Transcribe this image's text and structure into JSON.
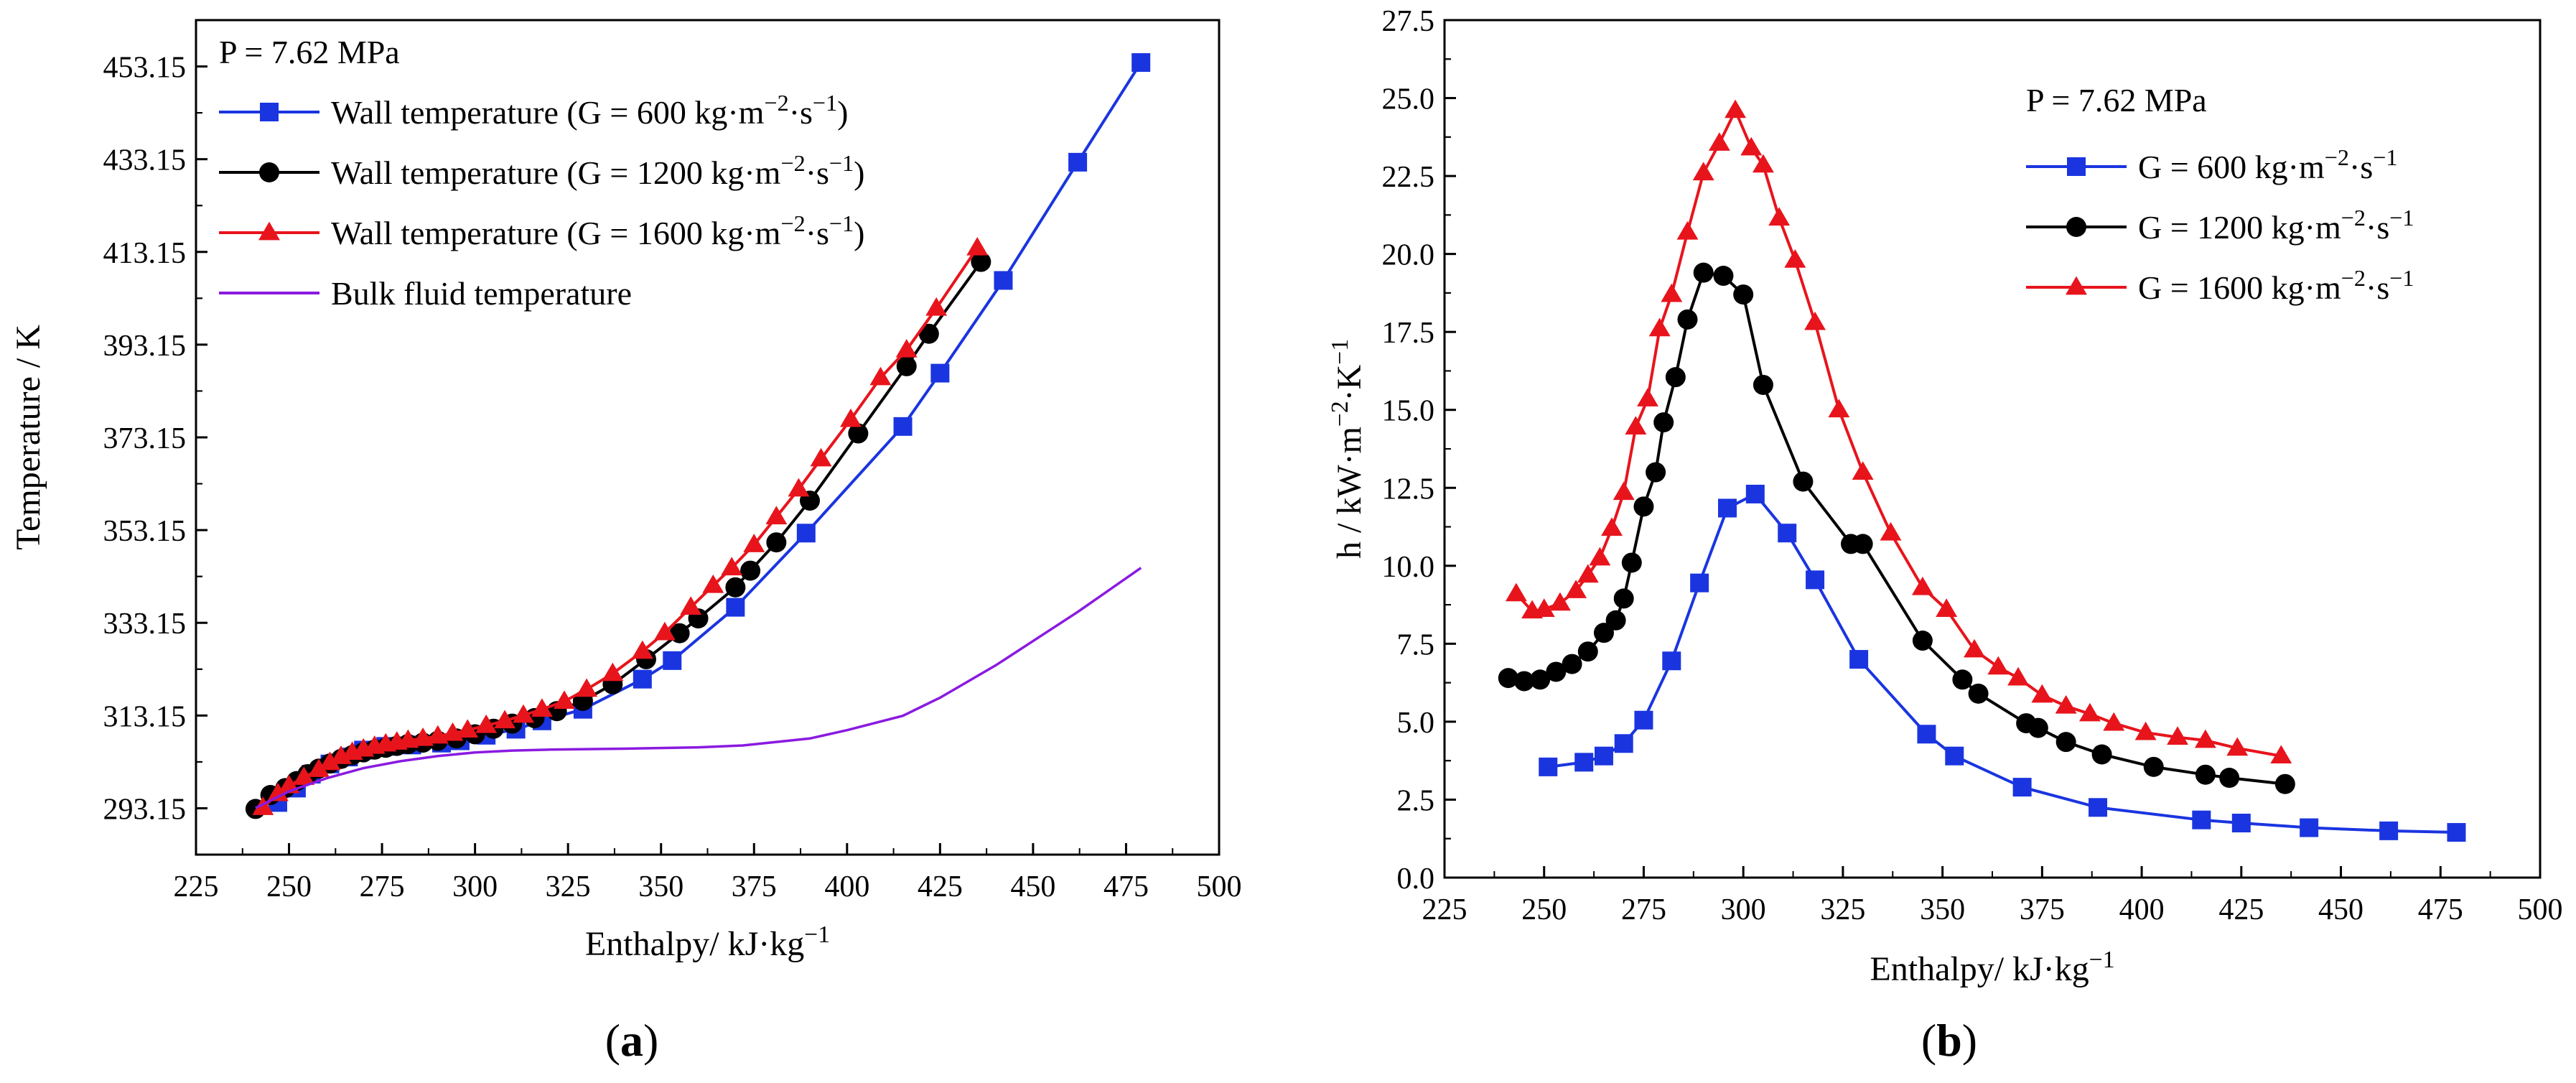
{
  "chart_data": [
    {
      "type": "line",
      "panel_label": "a",
      "annotation": "P = 7.62 MPa",
      "xlabel": "Enthalpy/ kJ·kg⁻¹",
      "ylabel": "Temperature / K",
      "xlim": [
        225,
        500
      ],
      "ylim": [
        283.15,
        463.15
      ],
      "x_ticks": [
        "225",
        "250",
        "275",
        "300",
        "325",
        "350",
        "375",
        "400",
        "425",
        "450",
        "475",
        "500"
      ],
      "y_ticks": [
        "293.15",
        "313.15",
        "333.15",
        "353.15",
        "373.15",
        "393.15",
        "413.15",
        "433.15",
        "453.15"
      ],
      "legend_position": "top-left",
      "series": [
        {
          "name": "Wall temperature (G =  600 kg·m⁻²·s⁻¹)",
          "color": "#1a35e0",
          "marker": "square",
          "x": [
            247,
            252,
            256,
            261,
            266,
            270,
            276,
            283,
            291,
            296,
            303,
            311,
            318,
            329,
            345,
            353,
            370,
            389,
            415,
            425,
            442,
            462,
            479
          ],
          "y": [
            294.4,
            297.5,
            300.5,
            302.7,
            304.2,
            305.7,
            306.5,
            306.8,
            307.2,
            307.7,
            308.9,
            310.2,
            312.0,
            314.5,
            321.0,
            325.0,
            336.5,
            352.5,
            375.5,
            387.0,
            407.0,
            432.5,
            454.0
          ]
        },
        {
          "name": "Wall temperature (G = 1200 kg·m⁻²·s⁻¹)",
          "color": "#000000",
          "marker": "circle",
          "x": [
            241,
            245,
            249,
            252,
            255,
            258,
            261,
            264,
            267,
            270,
            273,
            276,
            279,
            282,
            286,
            290,
            295,
            300,
            305,
            310,
            316,
            322,
            329,
            337,
            346,
            355,
            360,
            370,
            374,
            381,
            390,
            403,
            416,
            422,
            436
          ],
          "y": [
            293.0,
            296.0,
            297.5,
            299.0,
            300.5,
            301.7,
            302.8,
            303.8,
            304.6,
            305.2,
            305.8,
            306.2,
            306.6,
            307.0,
            307.3,
            307.7,
            308.2,
            309.1,
            310.3,
            311.4,
            312.6,
            314.1,
            316.3,
            319.9,
            325.3,
            330.9,
            334.1,
            340.8,
            344.4,
            350.5,
            359.5,
            374.0,
            388.5,
            395.5,
            411.0
          ]
        },
        {
          "name": "Wall temperature (G = 1600 kg·m⁻²·s⁻¹)",
          "color": "#e8141c",
          "marker": "triangle",
          "x": [
            243,
            247,
            250,
            254,
            258,
            261,
            264,
            267,
            270,
            273,
            276,
            279,
            282,
            286,
            290,
            294,
            298,
            303,
            308,
            313,
            318,
            324,
            330,
            337,
            345,
            351,
            358,
            364,
            369,
            375,
            381,
            387,
            393,
            401,
            409,
            416,
            424,
            435
          ],
          "y": [
            293.3,
            296.3,
            298.0,
            299.8,
            301.5,
            303.0,
            304.3,
            305.2,
            305.9,
            306.5,
            307.0,
            307.4,
            307.8,
            308.2,
            308.7,
            309.3,
            310.0,
            311.0,
            312.0,
            313.2,
            314.5,
            316.2,
            318.8,
            322.2,
            327.0,
            331.0,
            336.5,
            341.2,
            345.0,
            350.0,
            356.0,
            362.0,
            368.5,
            377.0,
            386.0,
            392.0,
            401.0,
            414.0
          ]
        },
        {
          "name": "Bulk fluid temperature",
          "color": "#8a1ae0",
          "marker": "none",
          "x": [
            241,
            250,
            260,
            270,
            280,
            290,
            300,
            310,
            320,
            340,
            360,
            372,
            390,
            400,
            415,
            425,
            440,
            462,
            479
          ],
          "y": [
            293.2,
            296.8,
            299.6,
            301.8,
            303.3,
            304.4,
            305.2,
            305.6,
            305.8,
            306.0,
            306.3,
            306.7,
            308.2,
            310.0,
            313.1,
            317.0,
            324.0,
            335.5,
            345.0
          ]
        }
      ]
    },
    {
      "type": "line",
      "panel_label": "b",
      "annotation": "P = 7.62 MPa",
      "xlabel": "Enthalpy/ kJ·kg⁻¹",
      "ylabel": "h / kW·m⁻²·K⁻¹",
      "xlim": [
        225,
        500
      ],
      "ylim": [
        0,
        27.5
      ],
      "x_ticks": [
        "225",
        "250",
        "275",
        "300",
        "325",
        "350",
        "375",
        "400",
        "425",
        "450",
        "475",
        "500"
      ],
      "y_ticks": [
        "0.0",
        "2.5",
        "5.0",
        "7.5",
        "10.0",
        "12.5",
        "15.0",
        "17.5",
        "20.0",
        "22.5",
        "25.0",
        "27.5"
      ],
      "legend_position": "top-right",
      "series": [
        {
          "name": "G =  600 kg·m⁻²·s⁻¹",
          "color": "#1a35e0",
          "marker": "square",
          "x": [
            251,
            260,
            265,
            270,
            275,
            282,
            289,
            296,
            303,
            311,
            318,
            329,
            346,
            353,
            370,
            389,
            415,
            425,
            442,
            462,
            479
          ],
          "y": [
            3.55,
            3.7,
            3.9,
            4.3,
            5.05,
            6.95,
            9.45,
            11.85,
            12.3,
            11.05,
            9.55,
            7.0,
            4.6,
            3.9,
            2.9,
            2.25,
            1.85,
            1.75,
            1.6,
            1.5,
            1.45
          ]
        },
        {
          "name": "G = 1200 kg·m⁻²·s⁻¹",
          "color": "#000000",
          "marker": "circle",
          "x": [
            241,
            245,
            249,
            253,
            257,
            261,
            265,
            268,
            270,
            272,
            275,
            278,
            280,
            283,
            286,
            290,
            295,
            300,
            305,
            315,
            327,
            330,
            345,
            355,
            359,
            371,
            374,
            381,
            390,
            403,
            416,
            422,
            436
          ],
          "y": [
            6.4,
            6.3,
            6.35,
            6.6,
            6.85,
            7.25,
            7.85,
            8.25,
            8.95,
            10.1,
            11.9,
            13.0,
            14.6,
            16.05,
            17.9,
            19.4,
            19.3,
            18.7,
            15.8,
            12.7,
            10.7,
            10.7,
            7.6,
            6.35,
            5.9,
            4.95,
            4.8,
            4.35,
            3.95,
            3.55,
            3.3,
            3.2,
            3.0
          ]
        },
        {
          "name": "G = 1600 kg·m⁻²·s⁻¹",
          "color": "#e8141c",
          "marker": "triangle",
          "x": [
            243,
            247,
            250,
            254,
            258,
            261,
            264,
            267,
            270,
            273,
            276,
            279,
            282,
            286,
            290,
            294,
            298,
            302,
            305,
            309,
            313,
            318,
            324,
            330,
            337,
            345,
            351,
            358,
            364,
            369,
            375,
            381,
            387,
            393,
            401,
            409,
            416,
            424,
            435
          ],
          "y": [
            9.1,
            8.55,
            8.6,
            8.8,
            9.2,
            9.7,
            10.25,
            11.2,
            12.35,
            14.45,
            15.35,
            17.6,
            18.7,
            20.7,
            22.6,
            23.55,
            24.6,
            23.4,
            22.85,
            21.15,
            19.8,
            17.8,
            15.0,
            13.0,
            11.05,
            9.3,
            8.6,
            7.3,
            6.75,
            6.4,
            5.85,
            5.5,
            5.25,
            4.95,
            4.65,
            4.5,
            4.4,
            4.15,
            3.9
          ]
        }
      ]
    }
  ]
}
